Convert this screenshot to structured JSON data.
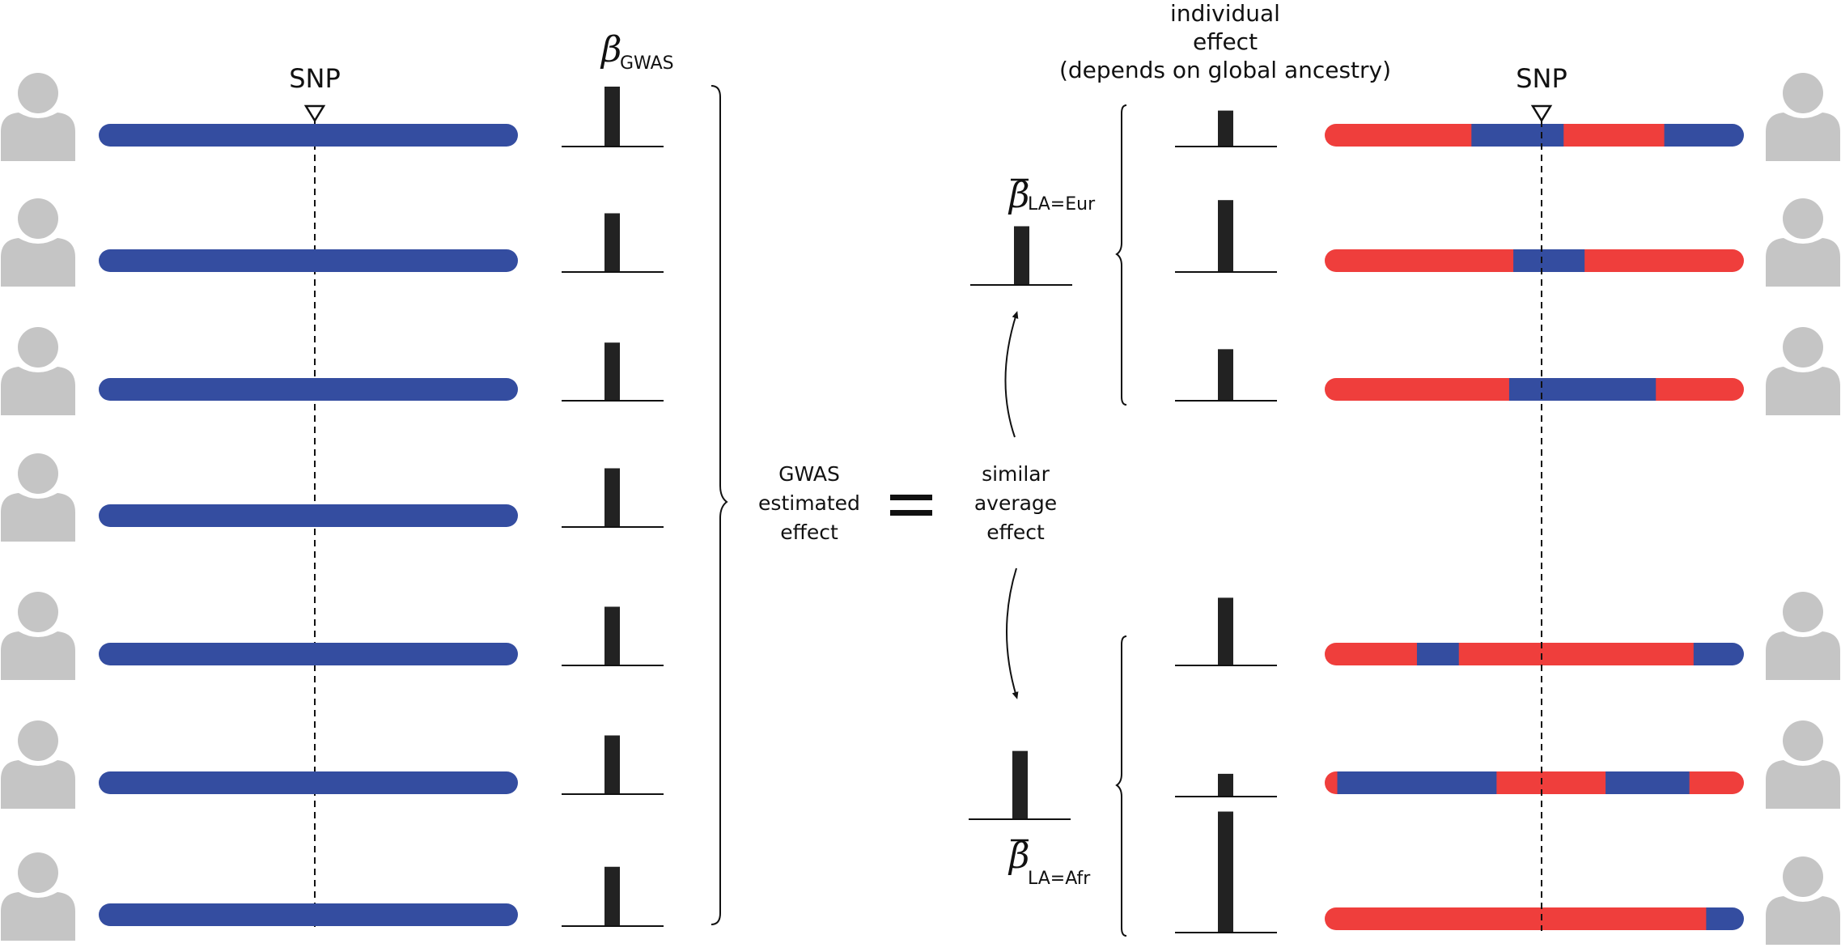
{
  "colors": {
    "european": "#344da0",
    "african": "#ef3e3c",
    "person": "#c5c5c5",
    "bar": "#222222",
    "line": "#111111"
  },
  "labels": {
    "snp_left": "SNP",
    "snp_right": "SNP",
    "beta_gwas_symbol": "β",
    "beta_gwas_sub": "GWAS",
    "individual_effect": [
      "individual",
      "effect",
      "(depends on global ancestry)"
    ],
    "gwas_estimated": [
      "GWAS",
      "estimated",
      "effect"
    ],
    "equals": "=",
    "similar_average": [
      "similar",
      "average",
      "effect"
    ],
    "beta_eur_symbol": "β",
    "beta_eur_sub": "LA=Eur",
    "beta_afr_symbol": "β",
    "beta_afr_sub": "LA=Afr"
  },
  "left_individuals": [
    {
      "segments": [
        [
          "eur",
          1.0
        ]
      ],
      "effect": 1.0
    },
    {
      "segments": [
        [
          "eur",
          1.0
        ]
      ],
      "effect": 0.98
    },
    {
      "segments": [
        [
          "eur",
          1.0
        ]
      ],
      "effect": 0.97
    },
    {
      "segments": [
        [
          "eur",
          1.0
        ]
      ],
      "effect": 0.98
    },
    {
      "segments": [
        [
          "eur",
          1.0
        ]
      ],
      "effect": 0.98
    },
    {
      "segments": [
        [
          "eur",
          1.0
        ]
      ],
      "effect": 0.98
    },
    {
      "segments": [
        [
          "eur",
          1.0
        ]
      ],
      "effect": 0.99
    }
  ],
  "right_individuals": [
    {
      "segments": [
        [
          "afr",
          0.35
        ],
        [
          "eur",
          0.22
        ],
        [
          "afr",
          0.24
        ],
        [
          "eur",
          0.19
        ]
      ],
      "effect": 0.6
    },
    {
      "segments": [
        [
          "afr",
          0.45
        ],
        [
          "eur",
          0.17
        ],
        [
          "afr",
          0.38
        ]
      ],
      "effect": 1.2
    },
    {
      "segments": [
        [
          "afr",
          0.44
        ],
        [
          "eur",
          0.35
        ],
        [
          "afr",
          0.21
        ]
      ],
      "effect": 0.86
    },
    {
      "segments": [
        [
          "afr",
          0.22
        ],
        [
          "eur",
          0.1
        ],
        [
          "afr",
          0.56
        ],
        [
          "eur",
          0.12
        ]
      ],
      "effect": 1.13
    },
    {
      "segments": [
        [
          "afr",
          0.03
        ],
        [
          "eur",
          0.38
        ],
        [
          "afr",
          0.26
        ],
        [
          "eur",
          0.2
        ],
        [
          "afr",
          0.13
        ]
      ],
      "effect": 0.38
    },
    {
      "segments": [
        [
          "afr",
          0.91
        ],
        [
          "eur",
          0.09
        ]
      ],
      "effect": 2.02
    }
  ],
  "averages": {
    "eur": 0.98,
    "afr": 1.14
  }
}
